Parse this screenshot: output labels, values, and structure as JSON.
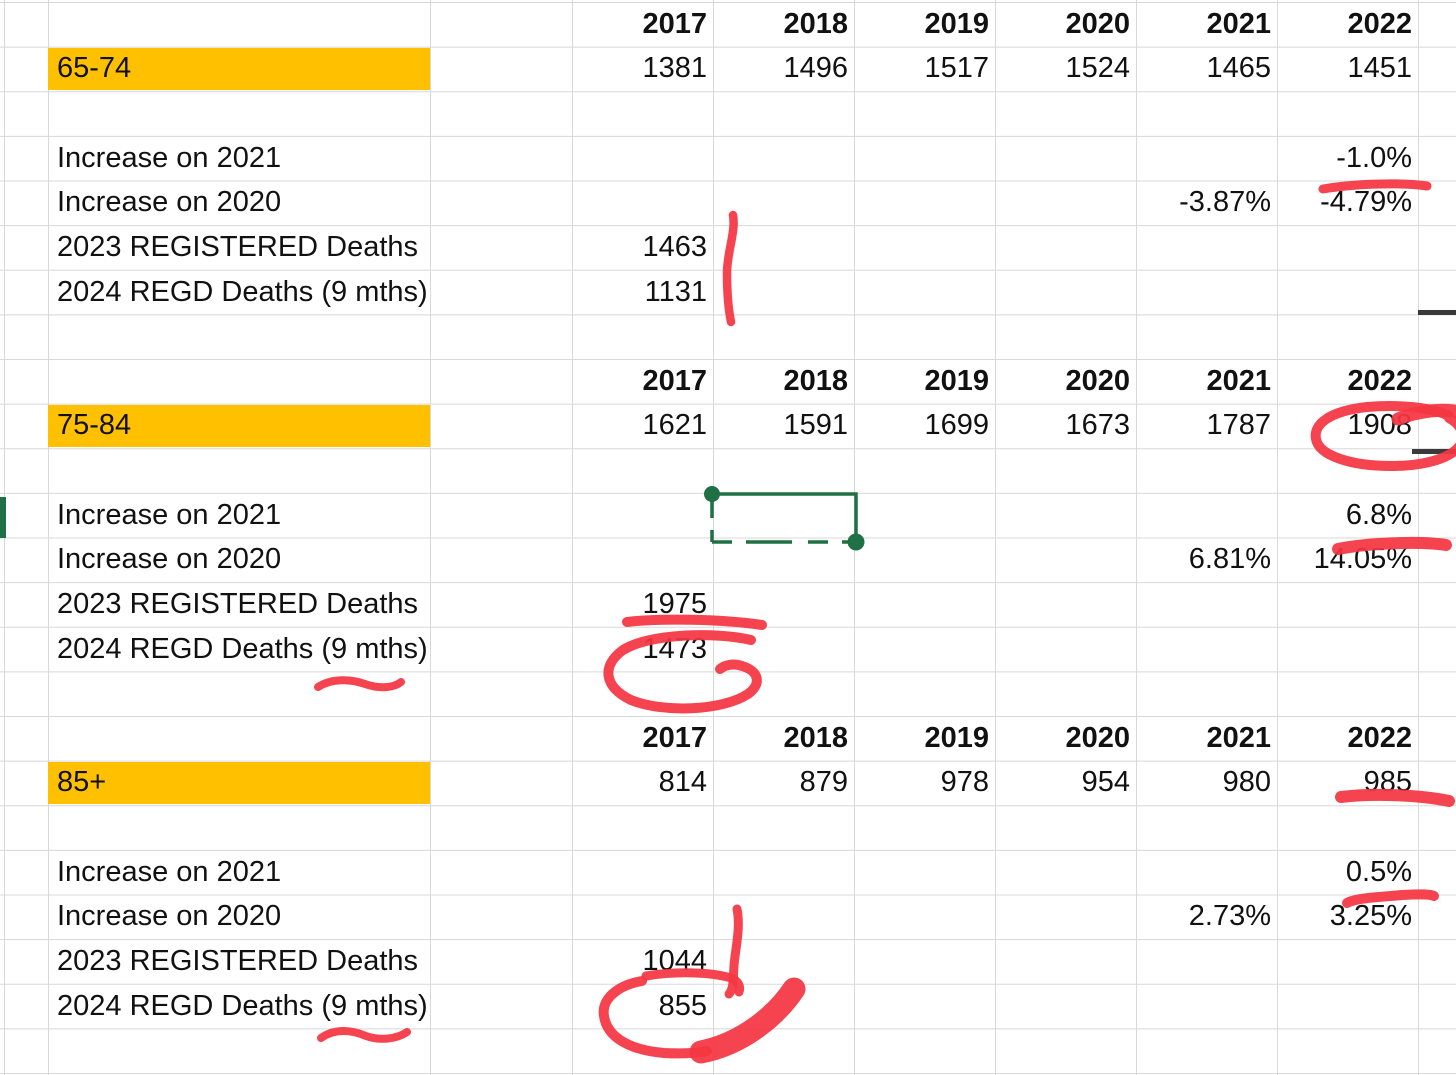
{
  "colors": {
    "highlight_orange": "#FFC000",
    "annotation_red": "#F43642",
    "selection_green": "#1F7145",
    "gridline_grey": "#D8D8D8",
    "dark_border": "#3A3A3A"
  },
  "years": [
    "2017",
    "2018",
    "2019",
    "2020",
    "2021",
    "2022"
  ],
  "sections": [
    {
      "age_group": "65-74",
      "values": [
        "1381",
        "1496",
        "1517",
        "1524",
        "1465",
        "1451"
      ],
      "labels": {
        "inc2021": "Increase on 2021",
        "inc2020": "Increase on 2020",
        "reg2023": "2023 REGISTERED Deaths",
        "regd2024": "2024 REGD Deaths (9 mths)"
      },
      "inc2021_pct_2022": "-1.0%",
      "inc2020_pct_2021": "-3.87%",
      "inc2020_pct_2022": "-4.79%",
      "reg2023_value": "1463",
      "regd2024_value": "1131"
    },
    {
      "age_group": "75-84",
      "values": [
        "1621",
        "1591",
        "1699",
        "1673",
        "1787",
        "1908"
      ],
      "labels": {
        "inc2021": "Increase on 2021",
        "inc2020": "Increase on 2020",
        "reg2023": "2023 REGISTERED Deaths",
        "regd2024": "2024 REGD Deaths (9 mths)"
      },
      "inc2021_pct_2022": "6.8%",
      "inc2020_pct_2021": "6.81%",
      "inc2020_pct_2022": "14.05%",
      "reg2023_value": "1975",
      "regd2024_value": "1473"
    },
    {
      "age_group": "85+",
      "values": [
        "814",
        "879",
        "978",
        "954",
        "980",
        "985"
      ],
      "labels": {
        "inc2021": "Increase on 2021",
        "inc2020": "Increase on 2020",
        "reg2023": "2023 REGISTERED Deaths",
        "regd2024": "2024 REGD Deaths (9 mths)"
      },
      "inc2021_pct_2022": "0.5%",
      "inc2020_pct_2021": "2.73%",
      "inc2020_pct_2022": "3.25%",
      "reg2023_value": "1044",
      "regd2024_value": "855"
    }
  ]
}
